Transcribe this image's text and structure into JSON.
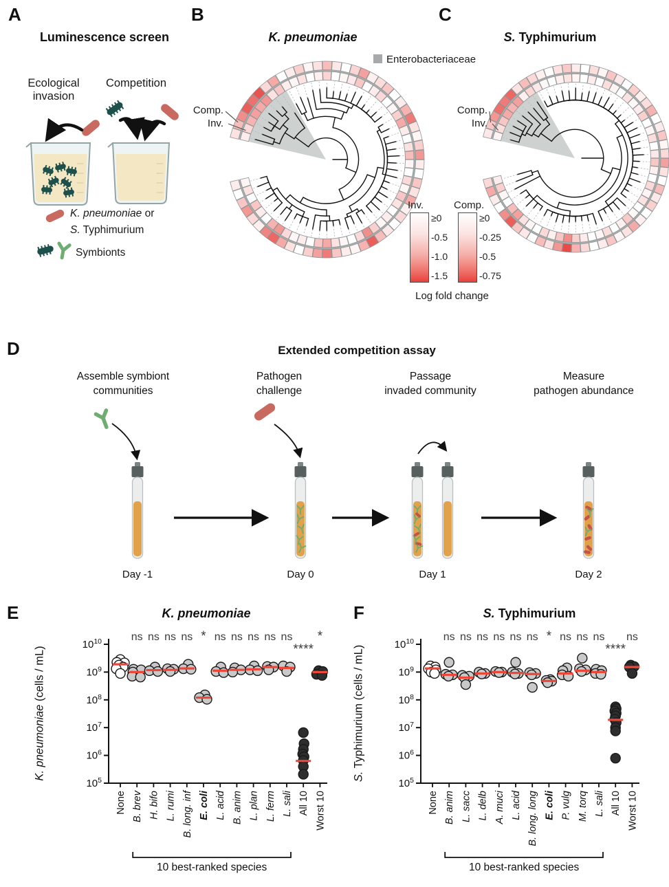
{
  "colors": {
    "median": "#ee4639",
    "heat_red": "#e8413c",
    "gray_fill": "#c9c9c9",
    "dark_fill": "#2e2e2e",
    "wedge": "#c8cdcc",
    "pathogen_rod": "#c96a60",
    "symbiont_green": "#6fad72",
    "symbiont_teal": "#1d4f4b",
    "broth": "#f4e7c3",
    "tube_liquid": "#e2a24b",
    "tube_cap": "#57605f",
    "glass_stroke": "#93a4a6",
    "red_speck": "#c4544a"
  },
  "panels": {
    "A": {
      "label": "A",
      "title": "Luminescence screen",
      "method1_line1": "Ecological",
      "method1_line2": "invasion",
      "method2": "Competition",
      "legend_pathogen_italic": "K. pneumoniae",
      "legend_pathogen_rest": " or",
      "legend_pathogen2_italic": "S.",
      "legend_pathogen2_rest": " Typhimurium",
      "legend_symbionts": "Symbionts"
    },
    "B": {
      "label": "B",
      "title_italic": "K. pneumoniae",
      "title_rest": "",
      "comp_label": "Comp.",
      "inv_label": "Inv.",
      "entero_legend": "Enterobacteriaceae"
    },
    "C": {
      "label": "C",
      "title_italic": "S.",
      "title_rest": " Typhimurium",
      "comp_label": "Comp.",
      "inv_label": "Inv."
    },
    "D": {
      "label": "D",
      "title": "Extended competition assay",
      "steps": [
        {
          "l1": "Assemble symbiont",
          "l2": "communities"
        },
        {
          "l1": "Pathogen",
          "l2": "challenge"
        },
        {
          "l1": "Passage",
          "l2": "invaded community"
        },
        {
          "l1": "Measure",
          "l2": "pathogen abundance"
        }
      ],
      "days": [
        "Day -1",
        "Day 0",
        "Day 1",
        "Day 2"
      ]
    },
    "E": {
      "label": "E",
      "title_italic": "K. pneumoniae",
      "title_rest": "",
      "ylabel_italic": "K. pneumoniae",
      "ylabel_rest": " (cells / mL)"
    },
    "F": {
      "label": "F",
      "title_italic": "S.",
      "title_rest": " Typhimurium",
      "ylabel_italic": "S.",
      "ylabel_rest": " Typhimurium (cells / mL)"
    }
  },
  "chart_data": [
    {
      "id": "B",
      "type": "circular-tree-heatmap",
      "title": "K. pneumoniae",
      "n_leaves": 58,
      "rings": {
        "inner": "Inv.",
        "outer": "Comp."
      },
      "highlight_clade": "Enterobacteriaceae",
      "colorbars": [
        {
          "label": "Inv.",
          "ticks": [
            "≥0",
            "-0.5",
            "-1.0",
            "-1.5"
          ]
        },
        {
          "label": "Comp.",
          "ticks": [
            "≥0",
            "-0.25",
            "-0.5",
            "-0.75"
          ]
        }
      ],
      "colorbar_caption": "Log fold change",
      "inv_values": [
        0.05,
        0.15,
        0,
        0.3,
        0.1,
        0,
        0.4,
        0.55,
        0.2,
        0.05,
        0.1,
        0,
        0.3,
        0.45,
        0.15,
        0.05,
        0,
        0.2,
        0.6,
        0.25,
        0.05,
        0.1,
        0,
        0.15,
        0.3,
        0.05,
        0.2,
        0,
        0.05,
        0.35,
        0.15,
        0,
        0.1,
        0.45,
        0.25,
        0.05,
        0,
        0.2,
        0.1,
        0,
        0.3,
        0.12,
        0.05,
        0,
        0.22,
        0.08,
        0,
        0.15,
        0.05,
        0.1,
        0.3,
        0.15,
        0.55,
        0.45,
        0.5,
        0.4,
        0.2,
        0.1
      ],
      "comp_values": [
        0.1,
        0,
        0.3,
        0.55,
        0.2,
        0.08,
        0.65,
        0.8,
        0.45,
        0.15,
        0,
        0.25,
        0.5,
        0.7,
        0.3,
        0.1,
        0.05,
        0.4,
        0.85,
        0.35,
        0.12,
        0,
        0.2,
        0.08,
        0.45,
        0.15,
        0.3,
        0,
        0.1,
        0.55,
        0.25,
        0.05,
        0.15,
        0.7,
        0.4,
        0.1,
        0,
        0.3,
        0.18,
        0.08,
        0.5,
        0.22,
        0,
        0.12,
        0.35,
        0.15,
        0.05,
        0.25,
        0.1,
        0,
        0.45,
        0.2,
        0.9,
        0.75,
        0.85,
        0.6,
        0.35,
        0.15
      ]
    },
    {
      "id": "C",
      "type": "circular-tree-heatmap",
      "title": "S. Typhimurium",
      "n_leaves": 58,
      "rings": {
        "inner": "Inv.",
        "outer": "Comp."
      },
      "highlight_clade": "Enterobacteriaceae",
      "inv_values": [
        0.1,
        0.25,
        0.05,
        0,
        0.35,
        0.5,
        0.15,
        0.05,
        0,
        0.2,
        0.08,
        0.3,
        0.6,
        0.25,
        0.1,
        0,
        0.05,
        0.18,
        0,
        0.08,
        0.28,
        0.04,
        0,
        0.15,
        0.06,
        0.2,
        0,
        0.08,
        0.3,
        0.12,
        0,
        0.18,
        0.05,
        0,
        0.25,
        0.1,
        0.04,
        0.15,
        0,
        0.06,
        0.18,
        0,
        0.1,
        0,
        0.05,
        0.15,
        0.08,
        0,
        0.04,
        0.12,
        0.22,
        0.08,
        0.5,
        0.4,
        0.45,
        0.3,
        0.18,
        0.06
      ],
      "comp_values": [
        0.2,
        0.45,
        0.1,
        0,
        0.6,
        0.85,
        0.3,
        0.12,
        0,
        0.35,
        0.15,
        0.55,
        0.95,
        0.4,
        0.2,
        0,
        0.1,
        0.3,
        0.05,
        0.15,
        0.45,
        0.08,
        0,
        0.25,
        0.12,
        0.35,
        0,
        0.15,
        0.5,
        0.2,
        0.05,
        0.3,
        0.1,
        0,
        0.4,
        0.18,
        0.08,
        0.25,
        0,
        0.12,
        0.3,
        0.06,
        0.18,
        0,
        0.1,
        0.28,
        0.15,
        0,
        0.08,
        0.2,
        0.35,
        0.15,
        0.8,
        0.7,
        0.75,
        0.55,
        0.3,
        0.12
      ]
    },
    {
      "id": "E",
      "type": "scatter",
      "title": "K. pneumoniae",
      "ylabel": "K. pneumoniae (cells / mL)",
      "ylim_log10": [
        5,
        10
      ],
      "y_log_ticks": [
        10,
        9,
        8,
        7,
        6,
        5
      ],
      "bracket_label": "10 best-ranked species",
      "bracket_range": [
        1,
        10
      ],
      "sig": [
        null,
        "ns",
        "ns",
        "ns",
        "ns",
        "*",
        "ns",
        "ns",
        "ns",
        "ns",
        "ns",
        "****",
        "*"
      ],
      "categories": [
        {
          "label": "None",
          "em": false,
          "bold": false,
          "style": "open",
          "median": 9.28,
          "points": [
            [
              9.45,
              0
            ],
            [
              9.35,
              -5
            ],
            [
              9.33,
              6
            ],
            [
              9.25,
              -2
            ],
            [
              9.18,
              4
            ],
            [
              9.12,
              -6
            ],
            [
              8.95,
              0
            ]
          ]
        },
        {
          "label": "B. brev",
          "em": true,
          "bold": false,
          "style": "gray",
          "median": 9.0,
          "points": [
            [
              9.1,
              -5
            ],
            [
              9.08,
              6
            ],
            [
              9.0,
              -6
            ],
            [
              8.85,
              -7
            ],
            [
              8.82,
              5
            ]
          ]
        },
        {
          "label": "H. bifo",
          "em": true,
          "bold": false,
          "style": "gray",
          "median": 9.07,
          "points": [
            [
              9.18,
              2
            ],
            [
              9.05,
              -6
            ],
            [
              9.02,
              6
            ]
          ]
        },
        {
          "label": "L. rumi",
          "em": true,
          "bold": false,
          "style": "gray",
          "median": 9.08,
          "points": [
            [
              9.12,
              -4
            ],
            [
              9.1,
              5
            ],
            [
              9.02,
              0
            ]
          ]
        },
        {
          "label": "B. long. inf",
          "em": true,
          "bold": false,
          "style": "gray",
          "median": 9.13,
          "points": [
            [
              9.28,
              2
            ],
            [
              9.12,
              -5
            ],
            [
              9.1,
              6
            ]
          ]
        },
        {
          "label": "E. coli",
          "em": true,
          "bold": true,
          "style": "gray",
          "median": 8.08,
          "points": [
            [
              8.18,
              2
            ],
            [
              8.08,
              -6
            ],
            [
              8.02,
              5
            ]
          ]
        },
        {
          "label": "L. acid",
          "em": true,
          "bold": false,
          "style": "gray",
          "median": 9.05,
          "points": [
            [
              9.18,
              1
            ],
            [
              9.02,
              -6
            ],
            [
              8.98,
              5
            ]
          ]
        },
        {
          "label": "B. anim",
          "em": true,
          "bold": false,
          "style": "gray",
          "median": 9.08,
          "points": [
            [
              9.15,
              -3
            ],
            [
              9.08,
              6
            ],
            [
              9.0,
              -6
            ]
          ]
        },
        {
          "label": "L. plan",
          "em": true,
          "bold": false,
          "style": "gray",
          "median": 9.1,
          "points": [
            [
              9.22,
              1
            ],
            [
              9.08,
              -5
            ],
            [
              9.05,
              6
            ]
          ]
        },
        {
          "label": "L. ferm",
          "em": true,
          "bold": false,
          "style": "gray",
          "median": 9.18,
          "points": [
            [
              9.2,
              -4
            ],
            [
              9.18,
              5
            ],
            [
              9.08,
              -2
            ]
          ]
        },
        {
          "label": "L. sali",
          "em": true,
          "bold": false,
          "style": "gray",
          "median": 9.15,
          "points": [
            [
              9.22,
              -5
            ],
            [
              9.18,
              5
            ],
            [
              9.02,
              0
            ]
          ]
        },
        {
          "label": "All 10",
          "em": false,
          "bold": false,
          "style": "dark",
          "median": 5.8,
          "points": [
            [
              6.82,
              0
            ],
            [
              6.42,
              1
            ],
            [
              6.22,
              0
            ],
            [
              6.05,
              -1
            ],
            [
              5.95,
              1
            ],
            [
              5.82,
              0
            ],
            [
              5.6,
              0
            ],
            [
              5.32,
              0
            ]
          ]
        },
        {
          "label": "Worst 10",
          "em": false,
          "bold": false,
          "style": "dark",
          "median": 9.0,
          "points": [
            [
              9.05,
              -2
            ],
            [
              9.02,
              4
            ],
            [
              8.92,
              -5
            ],
            [
              8.88,
              3
            ]
          ]
        }
      ]
    },
    {
      "id": "F",
      "type": "scatter",
      "title": "S. Typhimurium",
      "ylabel": "S. Typhimurium (cells / mL)",
      "ylim_log10": [
        5,
        10
      ],
      "y_log_ticks": [
        10,
        9,
        8,
        7,
        6,
        5
      ],
      "bracket_label": "10 best-ranked species",
      "bracket_range": [
        1,
        10
      ],
      "sig": [
        null,
        "ns",
        "ns",
        "ns",
        "ns",
        "ns",
        "ns",
        "*",
        "ns",
        "ns",
        "ns",
        "****",
        "ns"
      ],
      "categories": [
        {
          "label": "None",
          "em": false,
          "bold": false,
          "style": "open",
          "median": 9.13,
          "points": [
            [
              9.22,
              -3
            ],
            [
              9.18,
              4
            ],
            [
              9.12,
              -6
            ],
            [
              9.08,
              5
            ],
            [
              9.0,
              -2
            ],
            [
              8.95,
              3
            ]
          ]
        },
        {
          "label": "B. anim",
          "em": true,
          "bold": false,
          "style": "gray",
          "median": 8.9,
          "points": [
            [
              9.35,
              0
            ],
            [
              8.92,
              -5
            ],
            [
              8.9,
              5
            ],
            [
              8.85,
              -1
            ]
          ]
        },
        {
          "label": "L. sacc",
          "em": true,
          "bold": false,
          "style": "gray",
          "median": 8.8,
          "points": [
            [
              8.88,
              -5
            ],
            [
              8.85,
              5
            ],
            [
              8.8,
              -2
            ],
            [
              8.55,
              0
            ]
          ]
        },
        {
          "label": "L. delb",
          "em": true,
          "bold": false,
          "style": "gray",
          "median": 8.95,
          "points": [
            [
              9.0,
              -5
            ],
            [
              8.95,
              4
            ],
            [
              8.93,
              -1
            ]
          ]
        },
        {
          "label": "A. muci",
          "em": true,
          "bold": false,
          "style": "gray",
          "median": 9.0,
          "points": [
            [
              9.02,
              -5
            ],
            [
              9.0,
              4
            ],
            [
              8.98,
              0
            ]
          ]
        },
        {
          "label": "L. acid",
          "em": true,
          "bold": false,
          "style": "gray",
          "median": 8.97,
          "points": [
            [
              9.35,
              0
            ],
            [
              9.0,
              -5
            ],
            [
              8.95,
              4
            ],
            [
              8.93,
              -1
            ]
          ]
        },
        {
          "label": "B. long. long",
          "em": true,
          "bold": false,
          "style": "gray",
          "median": 8.93,
          "points": [
            [
              8.98,
              -4
            ],
            [
              8.95,
              5
            ],
            [
              8.9,
              -1
            ],
            [
              8.45,
              0
            ]
          ]
        },
        {
          "label": "E. coli",
          "em": true,
          "bold": true,
          "style": "gray",
          "median": 8.68,
          "points": [
            [
              8.73,
              2
            ],
            [
              8.7,
              -4
            ],
            [
              8.67,
              4
            ],
            [
              8.62,
              -2
            ]
          ]
        },
        {
          "label": "P. vulg",
          "em": true,
          "bold": false,
          "style": "gray",
          "median": 8.95,
          "points": [
            [
              9.15,
              2
            ],
            [
              9.05,
              -4
            ],
            [
              8.9,
              -5
            ],
            [
              8.85,
              4
            ]
          ]
        },
        {
          "label": "M. torq",
          "em": true,
          "bold": false,
          "style": "gray",
          "median": 9.05,
          "points": [
            [
              9.5,
              0
            ],
            [
              9.12,
              -4
            ],
            [
              9.08,
              5
            ],
            [
              9.02,
              -1
            ]
          ]
        },
        {
          "label": "L. sali",
          "em": true,
          "bold": false,
          "style": "gray",
          "median": 9.0,
          "points": [
            [
              9.1,
              -4
            ],
            [
              9.05,
              4
            ],
            [
              8.95,
              -5
            ],
            [
              8.92,
              3
            ]
          ]
        },
        {
          "label": "All 10",
          "em": false,
          "bold": false,
          "style": "dark",
          "median": 7.28,
          "points": [
            [
              7.75,
              0
            ],
            [
              7.68,
              1
            ],
            [
              7.6,
              -1
            ],
            [
              7.52,
              1
            ],
            [
              7.42,
              0
            ],
            [
              7.3,
              -1
            ],
            [
              7.18,
              1
            ],
            [
              7.0,
              0
            ],
            [
              6.88,
              0
            ],
            [
              5.9,
              0
            ]
          ]
        },
        {
          "label": "Worst 10",
          "em": false,
          "bold": false,
          "style": "dark",
          "median": 9.18,
          "points": [
            [
              9.25,
              -2
            ],
            [
              9.2,
              3
            ],
            [
              9.18,
              -4
            ],
            [
              8.95,
              0
            ]
          ]
        }
      ]
    }
  ]
}
